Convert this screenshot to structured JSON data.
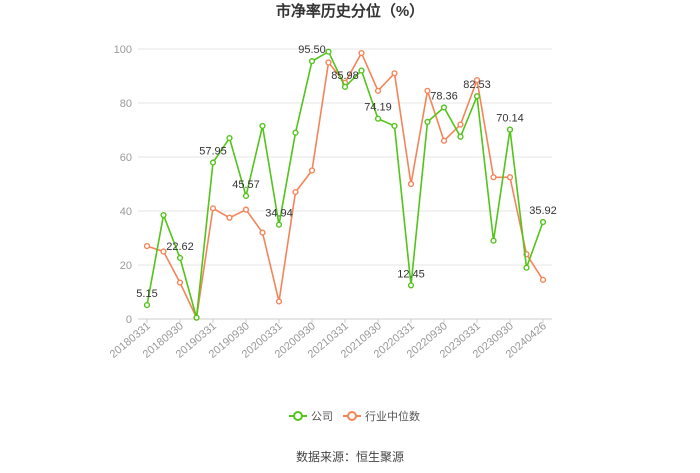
{
  "chart_data": {
    "type": "line",
    "title": "市净率历史分位（%）",
    "ylim": [
      0,
      100
    ],
    "yticks": [
      0,
      20,
      40,
      60,
      80,
      100
    ],
    "grid": true,
    "legend_position": "bottom",
    "x": [
      "20180331",
      "20180630",
      "20180930",
      "20181231",
      "20190331",
      "20190630",
      "20190930",
      "20191231",
      "20200331",
      "20200630",
      "20200930",
      "20201231",
      "20210331",
      "20210630",
      "20210930",
      "20211231",
      "20220331",
      "20220630",
      "20220930",
      "20221231",
      "20230331",
      "20230630",
      "20230930",
      "20231231",
      "20240426"
    ],
    "x_tick_labels": [
      "20180331",
      "",
      "20180930",
      "",
      "20190331",
      "",
      "20190930",
      "",
      "20200331",
      "",
      "20200930",
      "",
      "20210331",
      "",
      "20210930",
      "",
      "20220331",
      "",
      "20220930",
      "",
      "20230331",
      "",
      "20230930",
      "",
      "20240426"
    ],
    "series": [
      {
        "name": "公司",
        "color": "#52c41a",
        "values": [
          5.15,
          38.5,
          22.62,
          0.5,
          57.95,
          67.0,
          45.57,
          71.5,
          34.94,
          69.0,
          95.5,
          99.0,
          85.98,
          92.0,
          74.19,
          71.5,
          12.45,
          73.0,
          78.36,
          67.5,
          82.53,
          29.0,
          70.14,
          19.0,
          35.92
        ],
        "labels": {
          "0": "5.15",
          "2": "22.62",
          "4": "57.95",
          "6": "45.57",
          "8": "34.94",
          "10": "95.50",
          "12": "85.98",
          "14": "74.19",
          "16": "12.45",
          "18": "78.36",
          "20": "82.53",
          "22": "70.14",
          "24": "35.92"
        }
      },
      {
        "name": "行业中位数",
        "color": "#f5845a",
        "values": [
          27.0,
          25.0,
          13.5,
          0.5,
          41.0,
          37.5,
          40.5,
          32.0,
          6.5,
          47.0,
          55.0,
          95.0,
          87.5,
          98.5,
          84.5,
          91.0,
          50.0,
          84.5,
          66.0,
          72.0,
          88.5,
          52.5,
          52.5,
          24.0,
          14.5
        ]
      }
    ]
  },
  "source": "数据来源：恒生聚源"
}
